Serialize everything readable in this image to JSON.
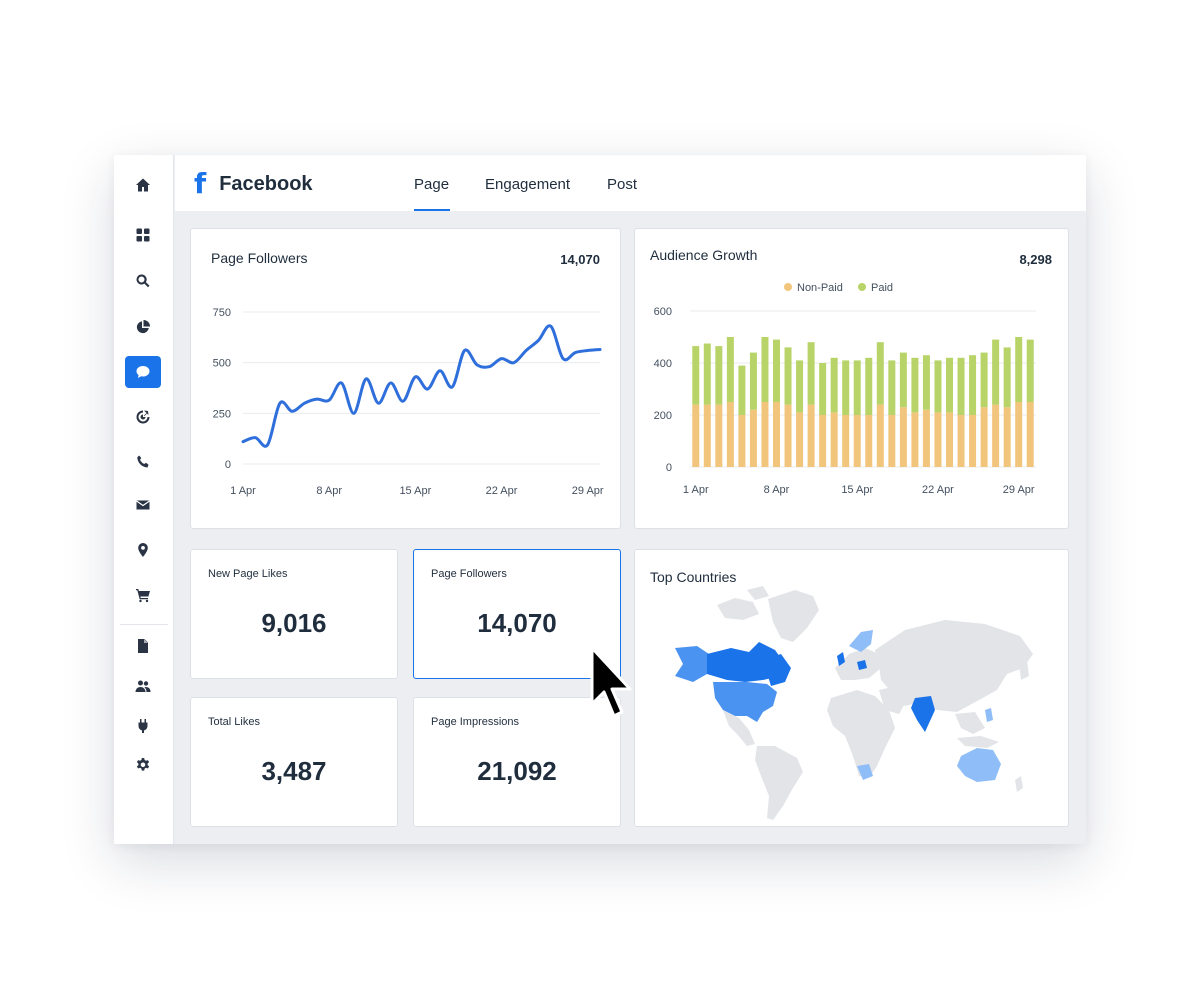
{
  "header": {
    "brand_icon": "facebook-f-icon",
    "brand_name": "Facebook",
    "tabs": [
      {
        "label": "Page",
        "active": true
      },
      {
        "label": "Engagement",
        "active": false
      },
      {
        "label": "Post",
        "active": false
      }
    ]
  },
  "sidebar": {
    "items": [
      {
        "icon": "home-icon"
      },
      {
        "icon": "dashboard-grid-icon"
      },
      {
        "icon": "search-icon"
      },
      {
        "icon": "pie-chart-icon"
      },
      {
        "icon": "chat-bubble-icon",
        "active": true
      },
      {
        "icon": "target-icon"
      },
      {
        "icon": "phone-icon"
      },
      {
        "icon": "mail-icon"
      },
      {
        "icon": "location-pin-icon"
      },
      {
        "icon": "cart-icon"
      },
      {
        "icon": "document-icon"
      },
      {
        "icon": "users-icon"
      },
      {
        "icon": "plug-icon"
      },
      {
        "icon": "gear-icon"
      }
    ]
  },
  "followers_card": {
    "title": "Page Followers",
    "total": "14,070"
  },
  "growth_card": {
    "title": "Audience Growth",
    "total": "8,298"
  },
  "metrics": [
    {
      "label": "New Page Likes",
      "value": "9,016"
    },
    {
      "label": "Page Followers",
      "value": "14,070"
    },
    {
      "label": "Total Likes",
      "value": "3,487"
    },
    {
      "label": "Page Impressions",
      "value": "21,092"
    }
  ],
  "countries_card": {
    "title": "Top Countries"
  },
  "colors": {
    "accent": "#1a73e8",
    "line": "#2e6fdb",
    "non_paid": "#f2c57c",
    "paid": "#b8d468",
    "map_land": "#e2e4e8",
    "map_high": "#1a73e8",
    "map_mid": "#4b93f0",
    "map_low": "#8ebdf7"
  },
  "chart_data": [
    {
      "type": "line",
      "title": "Page Followers",
      "x_ticks": [
        "1 Apr",
        "8 Apr",
        "15 Apr",
        "22 Apr",
        "29 Apr"
      ],
      "y_ticks": [
        0,
        250,
        500,
        750
      ],
      "ylim": [
        0,
        750
      ],
      "x": [
        1,
        2,
        3,
        4,
        5,
        6,
        7,
        8,
        9,
        10,
        11,
        12,
        13,
        14,
        15,
        16,
        17,
        18,
        19,
        20,
        21,
        22,
        23,
        24,
        25,
        26,
        27,
        28,
        29,
        30
      ],
      "series": [
        {
          "values": [
            110,
            130,
            95,
            300,
            260,
            300,
            320,
            315,
            400,
            250,
            420,
            300,
            400,
            310,
            430,
            370,
            460,
            380,
            560,
            490,
            480,
            520,
            500,
            560,
            610,
            680,
            520,
            550,
            560,
            565
          ]
        }
      ],
      "grid": true,
      "legend": "none"
    },
    {
      "type": "bar",
      "stacked": true,
      "title": "Audience Growth",
      "x_ticks": [
        "1 Apr",
        "8 Apr",
        "15 Apr",
        "22 Apr",
        "29 Apr"
      ],
      "y_ticks": [
        0,
        200,
        400,
        600
      ],
      "ylim": [
        0,
        600
      ],
      "legend": "top",
      "series": [
        {
          "name": "Non-Paid",
          "values": [
            240,
            240,
            240,
            250,
            200,
            220,
            250,
            250,
            240,
            210,
            240,
            200,
            210,
            200,
            200,
            200,
            240,
            200,
            230,
            210,
            220,
            210,
            210,
            200,
            200,
            230,
            240,
            230,
            250,
            250
          ]
        },
        {
          "name": "Paid",
          "values": [
            225,
            235,
            225,
            250,
            190,
            220,
            250,
            240,
            220,
            200,
            240,
            200,
            210,
            210,
            210,
            220,
            240,
            210,
            210,
            210,
            210,
            200,
            210,
            220,
            230,
            210,
            250,
            230,
            250,
            240
          ]
        }
      ]
    }
  ]
}
